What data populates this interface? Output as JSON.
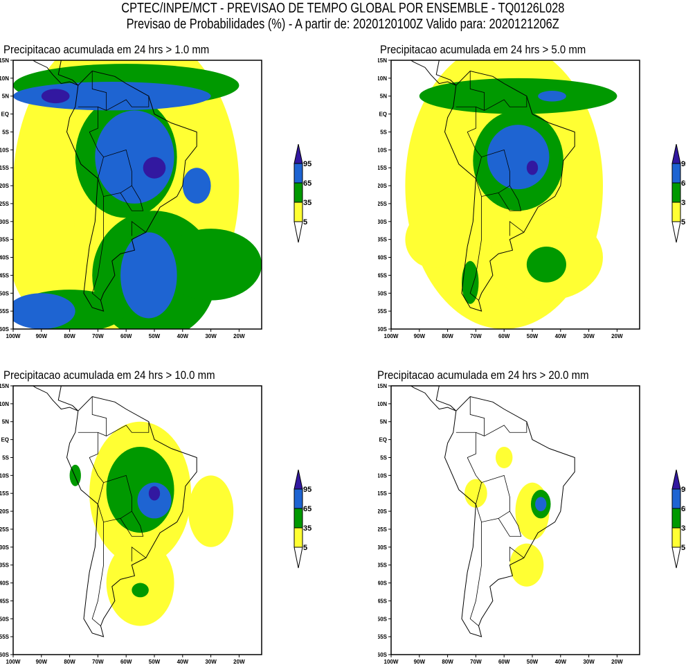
{
  "header": {
    "line1": "CPTEC/INPE/MCT - PREVISAO DE TEMPO GLOBAL POR ENSEMBLE - TQ0126L028",
    "line2": "Previsao de Probabilidades (%) -  A partir de: 2020120100Z  Valido para: 2020121206Z"
  },
  "panels": [
    {
      "title": "Precipitacao acumulada em 24 hrs > 1.0 mm",
      "threshold_mm": 1.0
    },
    {
      "title": "Precipitacao acumulada em 24 hrs > 5.0 mm",
      "threshold_mm": 5.0
    },
    {
      "title": "Precipitacao acumulada em 24 hrs > 10.0 mm",
      "threshold_mm": 10.0
    },
    {
      "title": "Precipitacao acumulada em 24 hrs > 20.0 mm",
      "threshold_mm": 20.0
    }
  ],
  "axes": {
    "lat_labels": [
      "15N",
      "10N",
      "5N",
      "EQ",
      "5S",
      "10S",
      "15S",
      "20S",
      "25S",
      "30S",
      "35S",
      "40S",
      "45S",
      "50S",
      "55S",
      "60S"
    ],
    "lon_labels": [
      "100W",
      "90W",
      "80W",
      "70W",
      "60W",
      "50W",
      "40W",
      "30W",
      "20W"
    ]
  },
  "colorbar": {
    "labels": [
      "95",
      "65",
      "35",
      "5"
    ],
    "colors": {
      "lt5": "#ffffff",
      "5_35": "#ffff33",
      "35_65": "#009900",
      "65_95": "#1e64d2",
      "gt95": "#3218a0"
    }
  }
}
